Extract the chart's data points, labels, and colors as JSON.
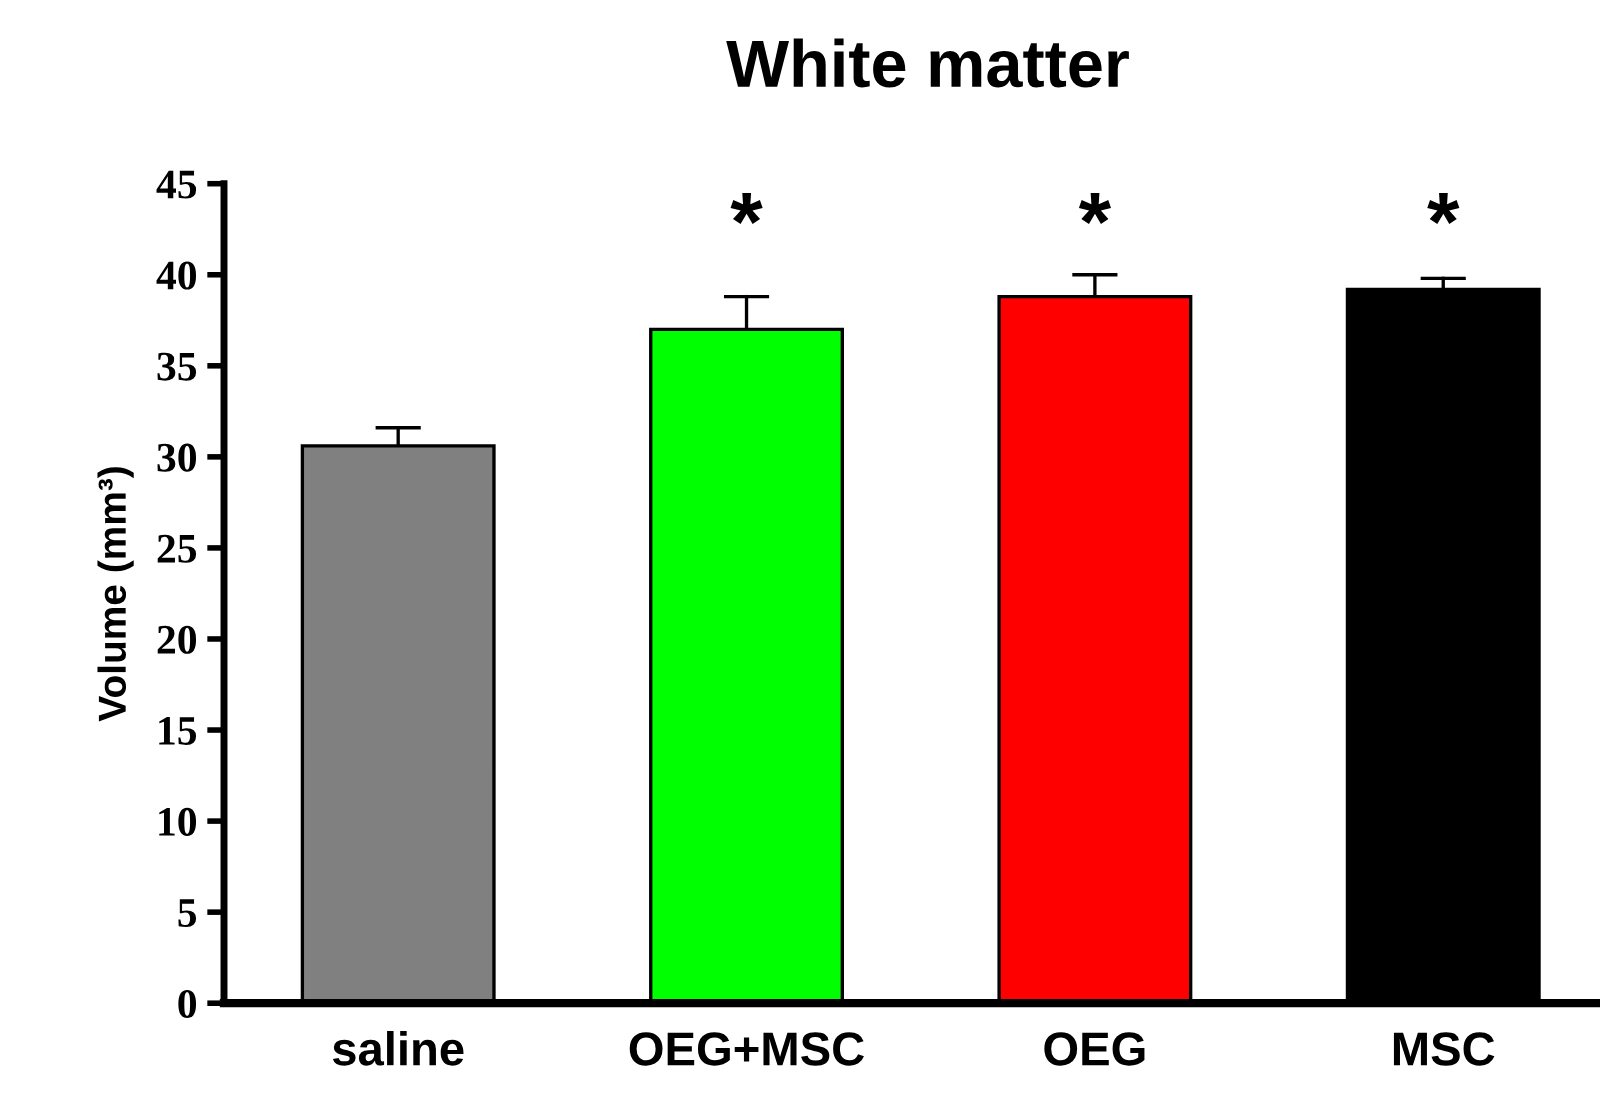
{
  "chart_data": {
    "type": "bar",
    "title": "White matter",
    "ylabel": "Volume (mm³)",
    "categories": [
      "saline",
      "OEG+MSC",
      "OEG",
      "MSC"
    ],
    "values": [
      30.6,
      37.0,
      38.8,
      39.2
    ],
    "colors": [
      "#808080",
      "#00ff00",
      "#ff0000",
      "#000000"
    ],
    "errors": [
      1.0,
      1.8,
      1.2,
      0.6
    ],
    "ylim": [
      0,
      45
    ],
    "yticks": [
      0,
      5,
      10,
      15,
      20,
      25,
      30,
      35,
      40,
      45
    ],
    "grid": false,
    "legend": false,
    "annotations": [
      "*",
      "*",
      "*"
    ]
  }
}
